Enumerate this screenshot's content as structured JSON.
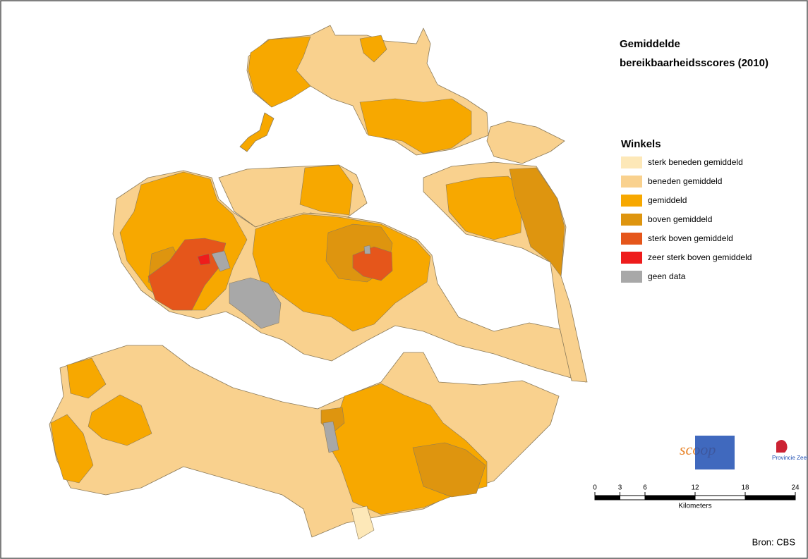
{
  "header": {
    "title_line1": "Gemiddelde",
    "title_line2": "bereikbaarheidsscores (2010)"
  },
  "legend": {
    "title": "Winkels",
    "items": [
      {
        "name": "sterk beneden gemiddeld",
        "color": "#fde8b8"
      },
      {
        "name": "beneden gemiddeld",
        "color": "#f9d18e"
      },
      {
        "name": "gemiddeld",
        "color": "#f7a800"
      },
      {
        "name": "boven gemiddeld",
        "color": "#de950f"
      },
      {
        "name": "sterk boven gemiddeld",
        "color": "#e5561b"
      },
      {
        "name": "zeer sterk boven gemiddeld",
        "color": "#ee1c1c"
      },
      {
        "name": "geen data",
        "color": "#a8a8a8"
      }
    ]
  },
  "scale_bar": {
    "ticks": [
      0,
      3,
      6,
      12,
      18,
      24
    ],
    "unit": "Kilometers"
  },
  "logos": {
    "scoop": "scoop",
    "province": "Provincie Zeeland"
  },
  "source": "Bron: CBS"
}
